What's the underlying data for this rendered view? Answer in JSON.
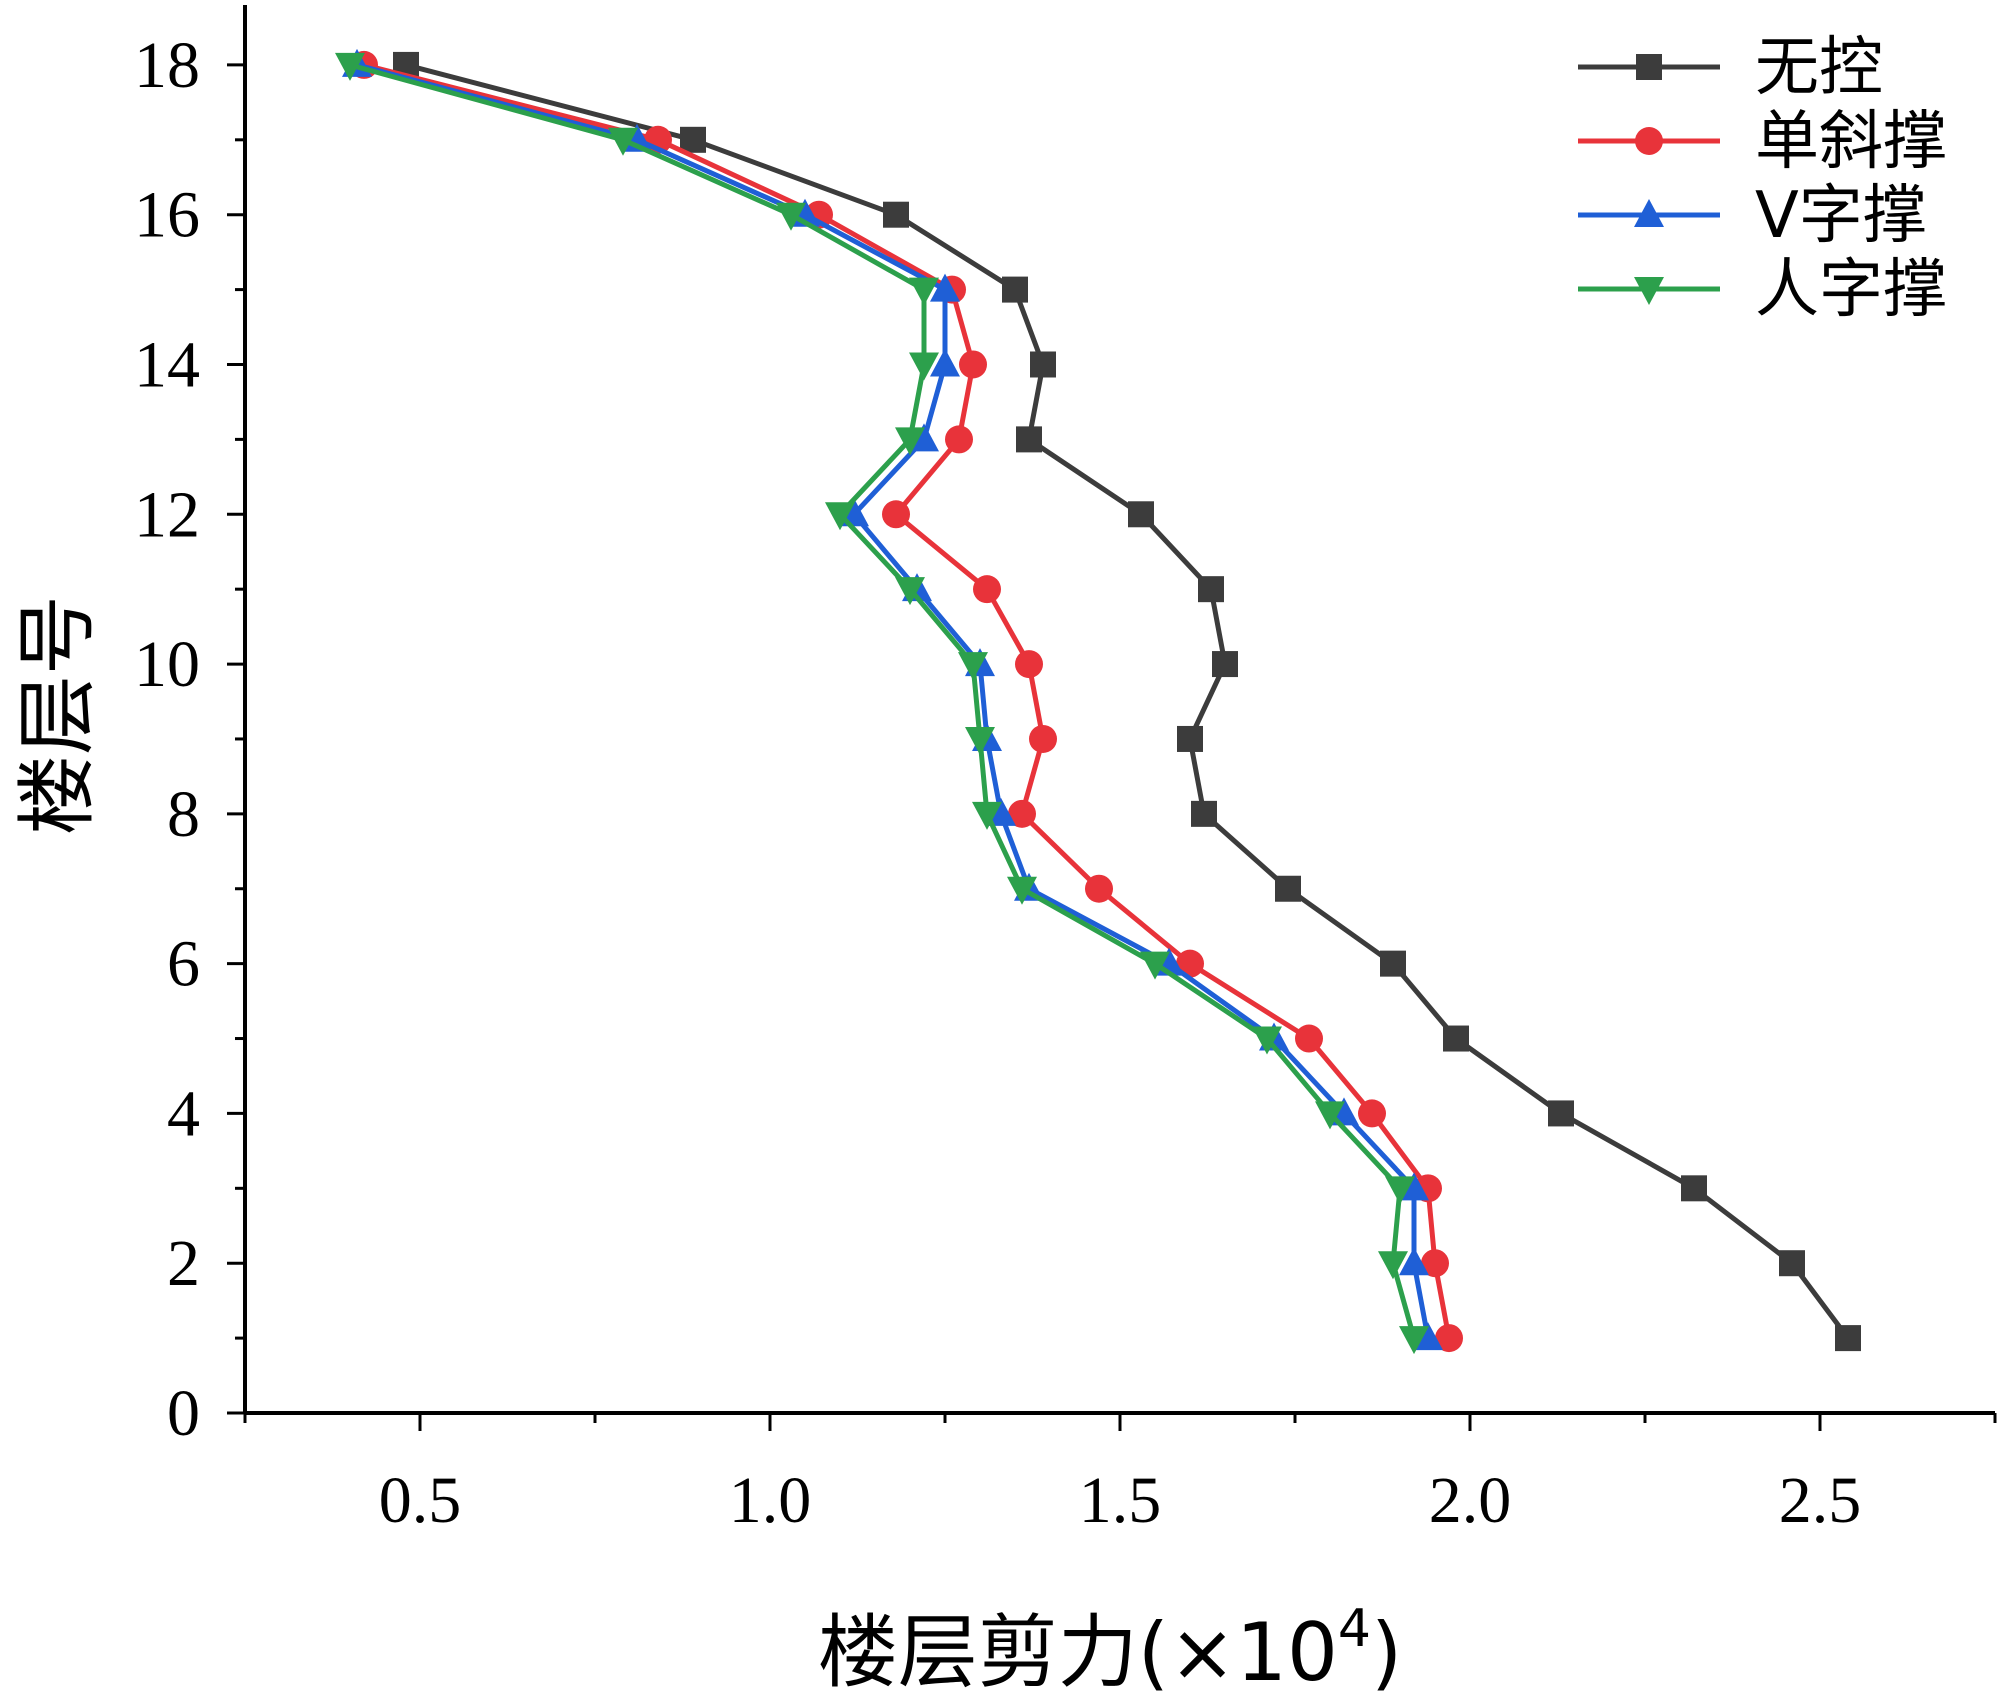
{
  "chart_data": {
    "type": "line",
    "xlabel": "楼层剪力(×10",
    "xlabel_sup": "4",
    "xlabel_close": ")",
    "ylabel": "楼层号",
    "xlim": [
      0.25,
      2.75
    ],
    "ylim": [
      0,
      18.8
    ],
    "xticks": [
      0.5,
      1.0,
      1.5,
      2.0,
      2.5
    ],
    "xtick_labels": [
      "0.5",
      "1.0",
      "1.5",
      "2.0",
      "2.5"
    ],
    "yticks": [
      0,
      2,
      4,
      6,
      8,
      10,
      12,
      14,
      16,
      18
    ],
    "ytick_labels": [
      "0",
      "2",
      "4",
      "6",
      "8",
      "10",
      "12",
      "14",
      "16",
      "18"
    ],
    "legend_position": "top-right",
    "grid": false,
    "y": [
      1,
      2,
      3,
      4,
      5,
      6,
      7,
      8,
      9,
      10,
      11,
      12,
      13,
      14,
      15,
      16,
      17,
      18
    ],
    "series": [
      {
        "name": "无控",
        "color": "#3c3c3c",
        "marker": "square",
        "x": [
          2.54,
          2.46,
          2.32,
          2.13,
          1.98,
          1.89,
          1.74,
          1.62,
          1.6,
          1.65,
          1.63,
          1.53,
          1.37,
          1.39,
          1.35,
          1.18,
          0.89,
          0.48
        ]
      },
      {
        "name": "单斜撑",
        "color": "#e8333a",
        "marker": "circle",
        "x": [
          1.97,
          1.95,
          1.94,
          1.86,
          1.77,
          1.6,
          1.47,
          1.36,
          1.39,
          1.37,
          1.31,
          1.18,
          1.27,
          1.29,
          1.26,
          1.07,
          0.84,
          0.42
        ]
      },
      {
        "name": "V字撑",
        "color": "#1f5fd6",
        "marker": "triangle-up",
        "x": [
          1.94,
          1.92,
          1.92,
          1.82,
          1.72,
          1.57,
          1.37,
          1.33,
          1.31,
          1.3,
          1.21,
          1.12,
          1.22,
          1.25,
          1.25,
          1.05,
          0.81,
          0.41
        ]
      },
      {
        "name": "人字撑",
        "color": "#2ca04c",
        "marker": "triangle-down",
        "x": [
          1.92,
          1.89,
          1.9,
          1.8,
          1.71,
          1.55,
          1.36,
          1.31,
          1.3,
          1.29,
          1.2,
          1.1,
          1.2,
          1.22,
          1.22,
          1.03,
          0.79,
          0.4
        ]
      }
    ]
  }
}
